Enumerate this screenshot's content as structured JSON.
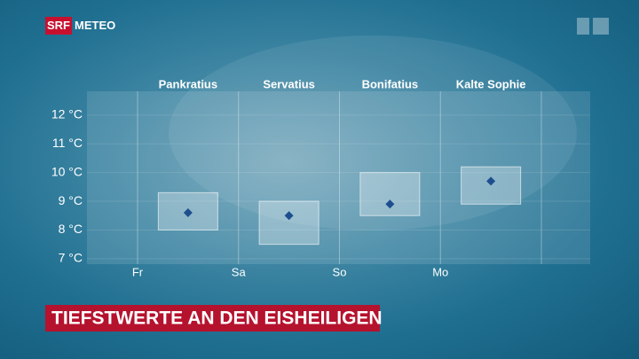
{
  "header": {
    "logo": "SRF",
    "brand": "METEO"
  },
  "chart_data": {
    "type": "range",
    "title": "TIEFSTWERTE AN DEN EISHEILIGEN",
    "categories": [
      "Pankratius",
      "Servatius",
      "Bonifatius",
      "Kalte Sophie"
    ],
    "days": [
      "Fr",
      "Sa",
      "So",
      "Mo"
    ],
    "min": [
      8.0,
      7.5,
      8.5,
      8.9
    ],
    "max": [
      9.3,
      9.0,
      10.0,
      10.2
    ],
    "mean": [
      8.6,
      8.5,
      8.9,
      9.7
    ],
    "box_color": "#ffffff",
    "marker_color": "#1d4f8f",
    "ylim": [
      6.81,
      12.83
    ],
    "yticks": [
      {
        "value": 7,
        "label": "7 °C"
      },
      {
        "value": 8,
        "label": "8 °C"
      },
      {
        "value": 9,
        "label": "9 °C"
      },
      {
        "value": 10,
        "label": "10 °C"
      },
      {
        "value": 11,
        "label": "11 °C"
      },
      {
        "value": 12,
        "label": "12 °C"
      }
    ],
    "grid": true
  }
}
